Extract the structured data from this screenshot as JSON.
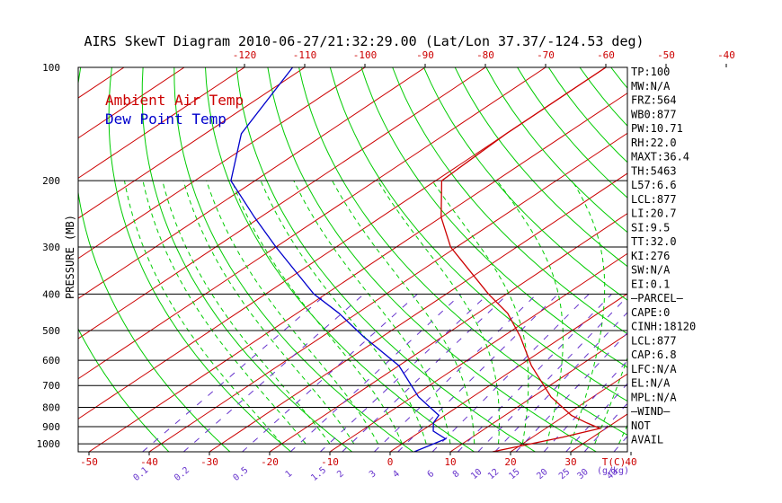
{
  "title": "AIRS SkewT Diagram 2010-06-27/21:32:29.00 (Lat/Lon 37.37/-124.53 deg)",
  "colors": {
    "axes": "#000000",
    "temperature": "#cc0000",
    "dewpoint": "#0000cc",
    "isotherm": "#cc0000",
    "dry_adiabat": "#00cc00",
    "moist_adiabat": "#00cc00",
    "mixing_ratio": "#6633cc"
  },
  "legend": {
    "air": "Ambient Air Temp",
    "dew": "Dew Point Temp"
  },
  "chart_data": {
    "type": "line",
    "title": "AIRS SkewT Diagram 2010-06-27/21:32:29.00 (Lat/Lon 37.37/-124.53 deg)",
    "ylabel": "PRESSURE (MB)",
    "xlabel_bottom_unit": "T(C)",
    "mixing_ratio_unit": "(g/kg)",
    "y_scale": "log",
    "ylim": [
      1050,
      100
    ],
    "pressure_ticks": [
      "100",
      "200",
      "300",
      "400",
      "500",
      "600",
      "700",
      "800",
      "900",
      "1000"
    ],
    "bottom_ticks": [
      "-50",
      "-40",
      "-30",
      "-20",
      "-10",
      "0",
      "10",
      "20",
      "30",
      "40"
    ],
    "top_ticks": [
      "-120",
      "-110",
      "-100",
      "-90",
      "-80",
      "-70",
      "-60",
      "-50",
      "-40"
    ],
    "mixing_ratio_labels": [
      "0.1",
      "0.2",
      "0.5",
      "1",
      "1.5",
      "2",
      "3",
      "4",
      "6",
      "8",
      "10",
      "12",
      "15",
      "20",
      "25",
      "30",
      "40"
    ],
    "series": [
      {
        "name": "Ambient Air Temp",
        "points": [
          {
            "p": 1050,
            "t": 17
          },
          {
            "p": 960,
            "t": 25
          },
          {
            "p": 910,
            "t": 29
          },
          {
            "p": 880,
            "t": 25.5
          },
          {
            "p": 840,
            "t": 21
          },
          {
            "p": 750,
            "t": 13
          },
          {
            "p": 620,
            "t": 2
          },
          {
            "p": 520,
            "t": -7
          },
          {
            "p": 450,
            "t": -15
          },
          {
            "p": 400,
            "t": -23
          },
          {
            "p": 300,
            "t": -41
          },
          {
            "p": 250,
            "t": -50
          },
          {
            "p": 200,
            "t": -59
          },
          {
            "p": 150,
            "t": -60
          },
          {
            "p": 100,
            "t": -60
          }
        ]
      },
      {
        "name": "Dew Point Temp",
        "points": [
          {
            "p": 1050,
            "t": 4
          },
          {
            "p": 970,
            "t": 6
          },
          {
            "p": 925,
            "t": 2
          },
          {
            "p": 880,
            "t": 0
          },
          {
            "p": 840,
            "t": -1
          },
          {
            "p": 750,
            "t": -9
          },
          {
            "p": 620,
            "t": -20
          },
          {
            "p": 520,
            "t": -33
          },
          {
            "p": 450,
            "t": -43
          },
          {
            "p": 400,
            "t": -52
          },
          {
            "p": 300,
            "t": -70
          },
          {
            "p": 250,
            "t": -81
          },
          {
            "p": 200,
            "t": -94
          },
          {
            "p": 150,
            "t": -104
          },
          {
            "p": 100,
            "t": -112
          }
        ]
      }
    ]
  },
  "indices": [
    "TP:100",
    "MW:N/A",
    "FRZ:564",
    "WB0:877",
    "PW:10.71",
    "RH:22.0",
    "MAXT:36.4",
    "TH:5463",
    "L57:6.6",
    "LCL:877",
    "LI:20.7",
    "SI:9.5",
    "TT:32.0",
    "KI:276",
    "SW:N/A",
    "EI:0.1",
    "–PARCEL–",
    "CAPE:0",
    "CINH:18120",
    "LCL:877",
    "CAP:6.8",
    "LFC:N/A",
    "EL:N/A",
    "MPL:N/A",
    "–WIND–",
    "NOT",
    "AVAIL"
  ]
}
